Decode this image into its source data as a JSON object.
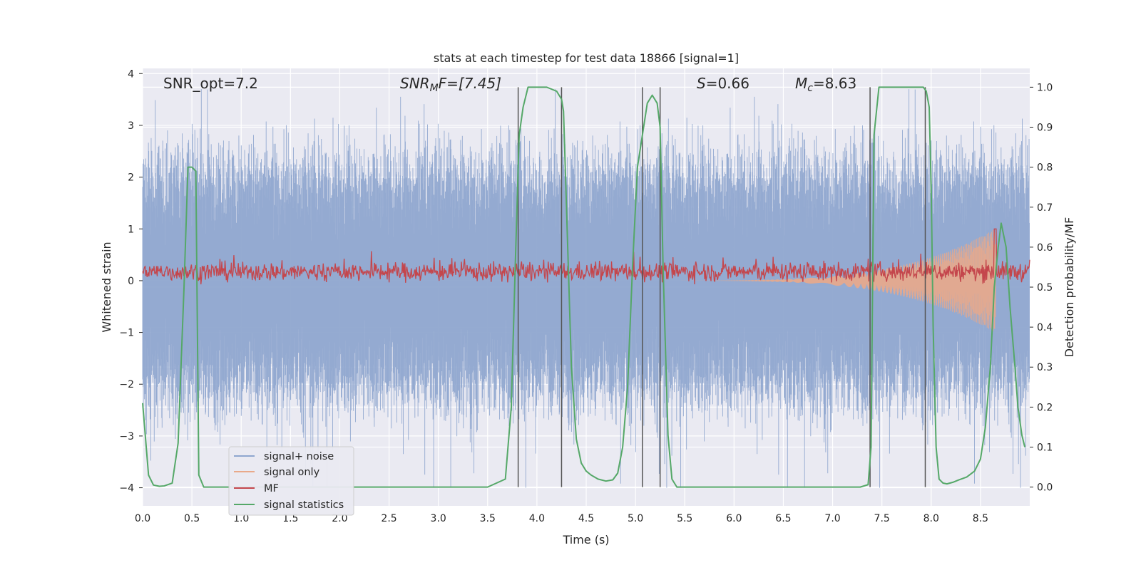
{
  "chart_data": {
    "type": "line",
    "title": "stats at each timestep for test data 18866 [signal=1]",
    "xlabel": "Time (s)",
    "ylabel_left": "Whitened strain",
    "ylabel_right": "Detection probability/MF",
    "xlim": [
      0,
      9.0
    ],
    "ylim_left": [
      -4.35,
      4.1
    ],
    "ylim_right": [
      -0.047,
      1.047
    ],
    "x_ticks": [
      "0.0",
      "0.5",
      "1.0",
      "1.5",
      "2.0",
      "2.5",
      "3.0",
      "3.5",
      "4.0",
      "4.5",
      "5.0",
      "5.5",
      "6.0",
      "6.5",
      "7.0",
      "7.5",
      "8.0",
      "8.5"
    ],
    "y_left_ticks": [
      "4",
      "3",
      "2",
      "1",
      "0",
      "−1",
      "−2",
      "−3",
      "−4"
    ],
    "y_right_ticks": [
      "1.0",
      "0.9",
      "0.8",
      "0.7",
      "0.6",
      "0.5",
      "0.4",
      "0.3",
      "0.2",
      "0.1",
      "0.0"
    ],
    "grid": true,
    "legend_position": "lower-left",
    "annotations": {
      "snr_opt": "SNR_opt=7.2",
      "snr_mf_main": "SNR",
      "snr_mf_sub": "M",
      "snr_mf_rest": "F=[7.45]",
      "s_main": "S",
      "s_rest": "=0.66",
      "mc_main": "M",
      "mc_sub": "c",
      "mc_rest": "=8.63"
    },
    "vertical_markers": [
      3.81,
      4.25,
      5.07,
      5.25,
      7.38,
      7.94
    ],
    "series": [
      {
        "name": "signal+ noise",
        "color": "#8fa6cf",
        "axis": "left",
        "envelope": {
          "typical": 1.9,
          "max": 3.7,
          "min": -4.0
        }
      },
      {
        "name": "signal only",
        "color": "#e9a98a",
        "axis": "left",
        "chirp_start": 5.0,
        "chirp_peak": 8.65,
        "peak_amplitude": 1.0
      },
      {
        "name": "MF",
        "color": "#c4464c",
        "axis": "left",
        "baseline": 0.17,
        "jitter": 0.2
      },
      {
        "name": "signal statistics",
        "color": "#55a868",
        "axis": "right",
        "x": [
          0.0,
          0.06,
          0.11,
          0.17,
          0.22,
          0.3,
          0.36,
          0.42,
          0.46,
          0.49,
          0.5,
          0.54,
          0.57,
          0.62,
          0.7,
          1.0,
          1.5,
          2.0,
          2.5,
          3.0,
          3.5,
          3.68,
          3.74,
          3.78,
          3.82,
          3.86,
          3.91,
          4.0,
          4.1,
          4.2,
          4.25,
          4.27,
          4.3,
          4.35,
          4.4,
          4.45,
          4.5,
          4.55,
          4.62,
          4.7,
          4.77,
          4.82,
          4.87,
          4.92,
          4.97,
          5.02,
          5.07,
          5.12,
          5.17,
          5.22,
          5.25,
          5.28,
          5.33,
          5.37,
          5.42,
          5.47,
          5.55,
          6.0,
          6.5,
          7.0,
          7.28,
          7.36,
          7.39,
          7.42,
          7.47,
          7.55,
          7.7,
          7.85,
          7.92,
          7.95,
          7.98,
          8.0,
          8.02,
          8.05,
          8.08,
          8.12,
          8.16,
          8.22,
          8.28,
          8.36,
          8.44,
          8.5,
          8.55,
          8.6,
          8.64,
          8.68,
          8.71,
          8.76,
          8.8,
          8.85,
          8.88,
          8.92,
          8.95
        ],
        "y": [
          0.21,
          0.03,
          0.005,
          0.002,
          0.003,
          0.01,
          0.11,
          0.5,
          0.8,
          0.8,
          0.8,
          0.79,
          0.03,
          0.0,
          0.0,
          0.0,
          0.0,
          0.0,
          0.0,
          0.0,
          0.0,
          0.02,
          0.2,
          0.55,
          0.88,
          0.95,
          1.0,
          1.0,
          1.0,
          0.99,
          0.97,
          0.94,
          0.7,
          0.3,
          0.12,
          0.06,
          0.04,
          0.03,
          0.02,
          0.015,
          0.018,
          0.035,
          0.1,
          0.25,
          0.55,
          0.8,
          0.88,
          0.96,
          0.98,
          0.96,
          0.9,
          0.55,
          0.13,
          0.02,
          0.0,
          0.0,
          0.0,
          0.0,
          0.0,
          0.0,
          0.0,
          0.006,
          0.1,
          0.88,
          1.0,
          1.0,
          1.0,
          1.0,
          1.0,
          0.99,
          0.95,
          0.75,
          0.4,
          0.1,
          0.02,
          0.01,
          0.008,
          0.012,
          0.018,
          0.025,
          0.04,
          0.07,
          0.15,
          0.3,
          0.5,
          0.6,
          0.66,
          0.6,
          0.45,
          0.3,
          0.2,
          0.13,
          0.1
        ]
      }
    ]
  }
}
